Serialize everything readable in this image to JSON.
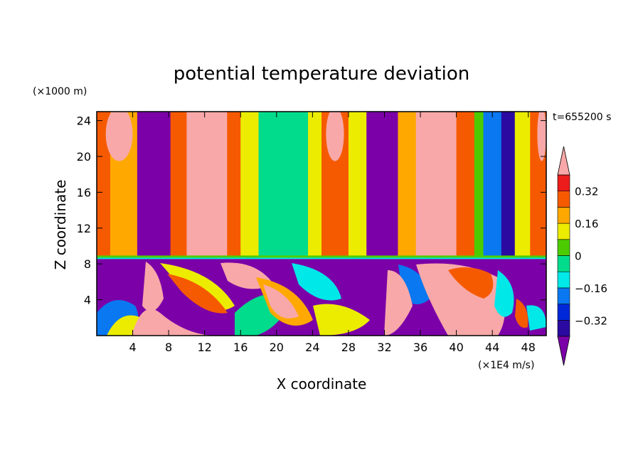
{
  "chart_data": {
    "type": "heatmap",
    "title": "potential temperature deviation",
    "xlabel": "X coordinate",
    "ylabel": "Z coordinate",
    "x_units": "(×1E4 m/s)",
    "y_units": "(×1000 m)",
    "time_label": "t=655200 s",
    "xlim": [
      0,
      50
    ],
    "ylim": [
      0,
      25
    ],
    "x_ticks": [
      4,
      8,
      12,
      16,
      20,
      24,
      28,
      32,
      36,
      40,
      44,
      48
    ],
    "x_tick_labels": [
      "4",
      "8",
      "12",
      "16",
      "20",
      "24",
      "28",
      "32",
      "36",
      "40",
      "44",
      "48"
    ],
    "y_ticks": [
      4,
      8,
      12,
      16,
      20,
      24
    ],
    "y_tick_labels": [
      "4",
      "8",
      "12",
      "16",
      "20",
      "24"
    ],
    "colorbar": {
      "levels": [
        -0.4,
        -0.32,
        -0.24,
        -0.16,
        -0.08,
        0,
        0.08,
        0.16,
        0.24,
        0.32,
        0.4
      ],
      "colors": [
        "#7b00a8",
        "#2a0aa0",
        "#0028d8",
        "#0a78f0",
        "#00e8e8",
        "#00dc8c",
        "#4ccc00",
        "#ecec00",
        "#ffa800",
        "#f65a00",
        "#ec1c1c",
        "#f8a8a8"
      ],
      "tick_values": [
        "0.32",
        "0.16",
        "0",
        "-0.16",
        "-0.32"
      ],
      "tick_labels": [
        "0.32",
        "0.16",
        "0",
        "−0.16",
        "−0.32"
      ],
      "extend": "both"
    },
    "tropopause_z": 8.7,
    "upper_columns": [
      {
        "x0": 0,
        "x1": 1.5,
        "value": 0.3
      },
      {
        "x0": 1.5,
        "x1": 4.5,
        "value": 0.2
      },
      {
        "x0": 4.5,
        "x1": 8.2,
        "value": -0.45
      },
      {
        "x0": 8.2,
        "x1": 10,
        "value": 0.3
      },
      {
        "x0": 10,
        "x1": 14.5,
        "value": 0.42
      },
      {
        "x0": 14.5,
        "x1": 16,
        "value": 0.3
      },
      {
        "x0": 16,
        "x1": 18,
        "value": 0.1
      },
      {
        "x0": 18,
        "x1": 23.5,
        "value": -0.05
      },
      {
        "x0": 23.5,
        "x1": 25,
        "value": 0.1
      },
      {
        "x0": 25,
        "x1": 28,
        "value": 0.28
      },
      {
        "x0": 28,
        "x1": 30,
        "value": 0.12
      },
      {
        "x0": 30,
        "x1": 33.5,
        "value": -0.45
      },
      {
        "x0": 33.5,
        "x1": 35.5,
        "value": 0.2
      },
      {
        "x0": 35.5,
        "x1": 40,
        "value": 0.42
      },
      {
        "x0": 40,
        "x1": 42,
        "value": 0.25
      },
      {
        "x0": 42,
        "x1": 43,
        "value": 0.05
      },
      {
        "x0": 43,
        "x1": 45,
        "value": -0.2
      },
      {
        "x0": 45,
        "x1": 46.5,
        "value": -0.35
      },
      {
        "x0": 46.5,
        "x1": 48.2,
        "value": 0.1
      },
      {
        "x0": 48.2,
        "x1": 50,
        "value": 0.3
      }
    ],
    "lower_region": {
      "z0": 0,
      "z1": 8.7,
      "background_value": -0.45
    }
  }
}
